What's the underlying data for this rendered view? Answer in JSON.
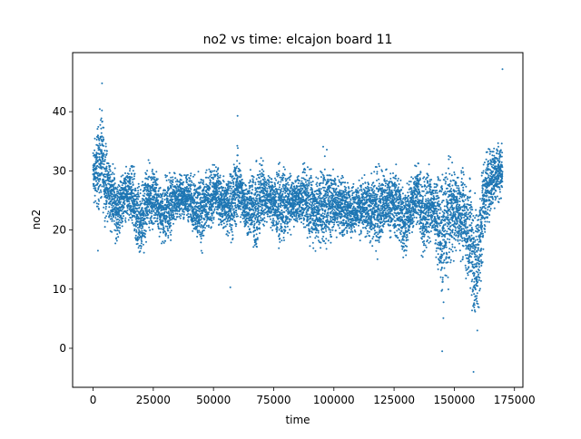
{
  "chart_data": {
    "type": "scatter",
    "title": "no2 vs time: elcajon board 11",
    "xlabel": "time",
    "ylabel": "no2",
    "xlim": [
      -8500,
      178500
    ],
    "ylim": [
      -6.6,
      50.0
    ],
    "xticks": [
      0,
      25000,
      50000,
      75000,
      100000,
      125000,
      150000,
      175000
    ],
    "xtick_labels": [
      "0",
      "25000",
      "50000",
      "75000",
      "100000",
      "125000",
      "150000",
      "175000"
    ],
    "yticks": [
      0,
      10,
      20,
      30,
      40
    ],
    "ytick_labels": [
      "0",
      "10",
      "20",
      "30",
      "40"
    ],
    "grid": false,
    "legend": "none",
    "color": "#1f77b4",
    "x_range": [
      0,
      170000
    ],
    "envelope": {
      "x": [
        0,
        2000,
        3500,
        5000,
        7000,
        9000,
        10000,
        13000,
        16000,
        18000,
        20000,
        23000,
        26000,
        29000,
        31000,
        34000,
        37000,
        40000,
        43000,
        45000,
        48000,
        51000,
        54000,
        56000,
        58000,
        60000,
        62000,
        64000,
        66000,
        68000,
        70000,
        72000,
        74000,
        77000,
        79000,
        81000,
        84000,
        87000,
        90000,
        93000,
        96000,
        99000,
        102000,
        105000,
        107000,
        110000,
        113000,
        116000,
        118000,
        121000,
        124000,
        126000,
        129000,
        131000,
        133000,
        135000,
        137000,
        139000,
        141000,
        143000,
        145000,
        147000,
        149000,
        151000,
        153000,
        155000,
        157000,
        158500,
        160000,
        162000,
        164000,
        166000,
        168000,
        170000
      ],
      "y_max": [
        36,
        40,
        43,
        37,
        34,
        32,
        30,
        31,
        33,
        31,
        30,
        33,
        31,
        29,
        32,
        31,
        30,
        31,
        30,
        33,
        31,
        33,
        30,
        31,
        33,
        36,
        31,
        30,
        32,
        33,
        35,
        31,
        31,
        32,
        33,
        31,
        30,
        32,
        33,
        31,
        35,
        32,
        31,
        30,
        29,
        30,
        30,
        31,
        33,
        32,
        31,
        33,
        30,
        29,
        31,
        35,
        31,
        33,
        30,
        31,
        33,
        35,
        34,
        31,
        33,
        31,
        33,
        30,
        29,
        35,
        36,
        37,
        37,
        36
      ],
      "y_min": [
        22,
        21,
        22,
        20,
        19,
        17,
        16,
        21,
        18,
        14,
        13,
        18,
        20,
        16,
        15,
        20,
        21,
        20,
        17,
        14,
        18,
        20,
        19,
        17,
        16,
        19,
        20,
        17,
        16,
        13,
        18,
        20,
        19,
        16,
        15,
        18,
        20,
        19,
        16,
        15,
        14,
        17,
        18,
        17,
        18,
        18,
        17,
        16,
        14,
        17,
        18,
        16,
        13,
        16,
        19,
        18,
        13,
        15,
        18,
        13,
        3,
        8,
        13,
        15,
        13,
        10,
        5,
        -3,
        1,
        14,
        19,
        21,
        23,
        24
      ]
    },
    "outliers": [
      {
        "x": 170000,
        "y": 47.2
      },
      {
        "x": 3700,
        "y": 44.8
      },
      {
        "x": 60000,
        "y": 39.3
      },
      {
        "x": 2000,
        "y": 16.5
      },
      {
        "x": 57000,
        "y": 10.3
      },
      {
        "x": 145000,
        "y": -0.5
      },
      {
        "x": 158000,
        "y": -4.0
      }
    ],
    "n_points": 9000
  }
}
